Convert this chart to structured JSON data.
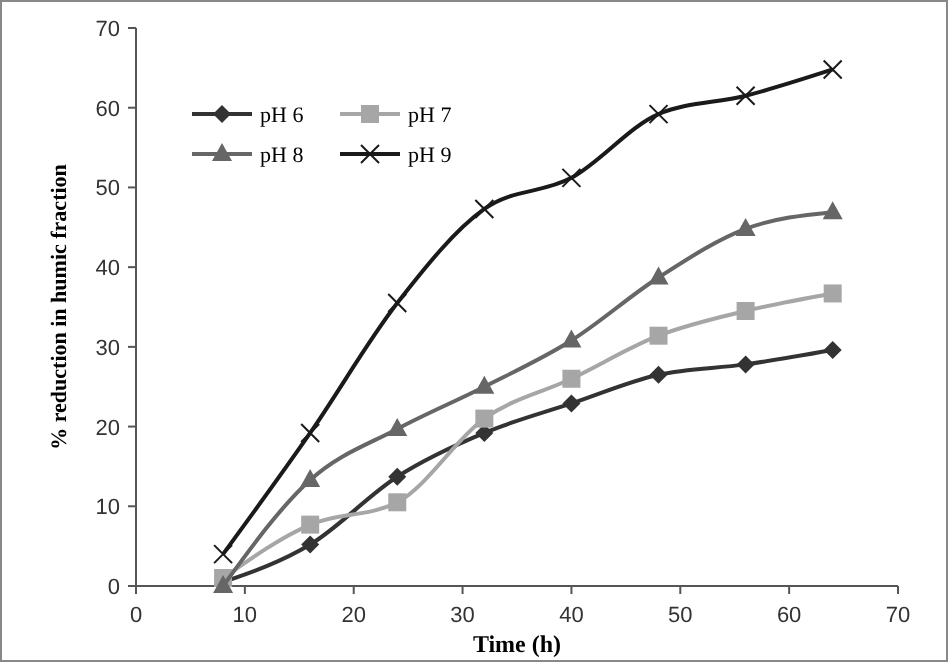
{
  "chart_data": {
    "type": "line",
    "xlabel": "Time (h)",
    "ylabel": "% reduction in humic fraction",
    "x": [
      8,
      16,
      24,
      32,
      40,
      48,
      56,
      64
    ],
    "xlim": [
      0,
      70
    ],
    "xticks": [
      0,
      10,
      20,
      30,
      40,
      50,
      60,
      70
    ],
    "ylim": [
      0,
      70
    ],
    "yticks": [
      0,
      10,
      20,
      30,
      40,
      50,
      60,
      70
    ],
    "grid": false,
    "legend": "top left",
    "series": [
      {
        "name": "pH 6",
        "color": "#333333",
        "marker": "diamond",
        "values": [
          0.5,
          5.2,
          13.7,
          19.2,
          22.9,
          26.5,
          27.8,
          29.6
        ]
      },
      {
        "name": "pH 7",
        "color": "#a6a6a6",
        "marker": "square",
        "values": [
          1,
          7.7,
          10.5,
          21,
          26,
          31.4,
          34.5,
          36.7
        ]
      },
      {
        "name": "pH 8",
        "color": "#666666",
        "marker": "triangle",
        "values": [
          0,
          13.3,
          19.7,
          25,
          30.8,
          38.7,
          44.8,
          46.9
        ]
      },
      {
        "name": "pH 9",
        "color": "#1a1a1a",
        "marker": "cross",
        "values": [
          4,
          19.2,
          35.5,
          47.3,
          51.2,
          59.2,
          61.5,
          64.8
        ]
      }
    ]
  }
}
